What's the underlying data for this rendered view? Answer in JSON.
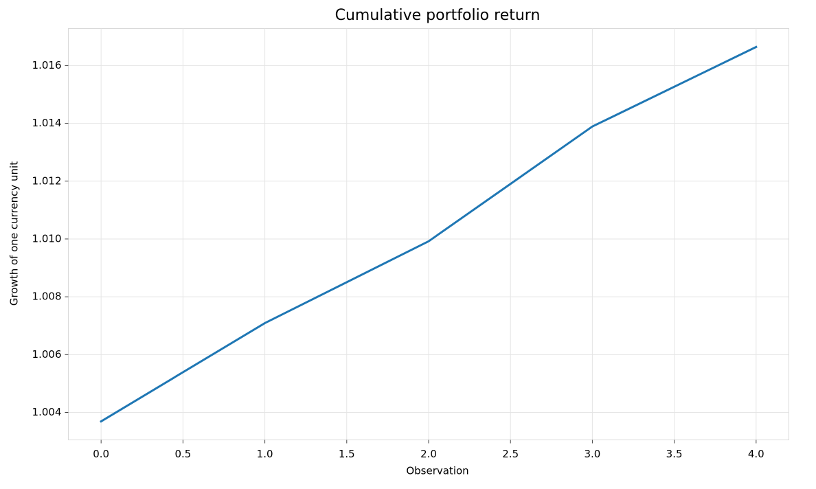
{
  "chart_data": {
    "type": "line",
    "title": "Cumulative portfolio return",
    "x_label": "Observation",
    "y_label": "Growth of one currency unit",
    "x": [
      0,
      1,
      2,
      3,
      4
    ],
    "values": [
      1.00369,
      1.00709,
      1.00992,
      1.01389,
      1.01664
    ],
    "color": "#1f77b4",
    "xlim": [
      -0.2,
      4.2
    ],
    "xticks": [
      {
        "value": 0,
        "label": "0.0"
      },
      0.5,
      {
        "value": 1,
        "label": "1.0"
      },
      1.5,
      {
        "value": 2,
        "label": "2.0"
      },
      2.5,
      {
        "value": 3,
        "label": "3.0"
      },
      3.5,
      {
        "value": 4,
        "label": "4.0"
      }
    ],
    "ylim": [
      1.00305,
      1.01728
    ],
    "yticks": [
      1.004,
      1.006,
      1.008,
      {
        "value": 1.01,
        "label": "1.010"
      },
      1.012,
      1.014,
      1.016
    ],
    "grid": true
  }
}
